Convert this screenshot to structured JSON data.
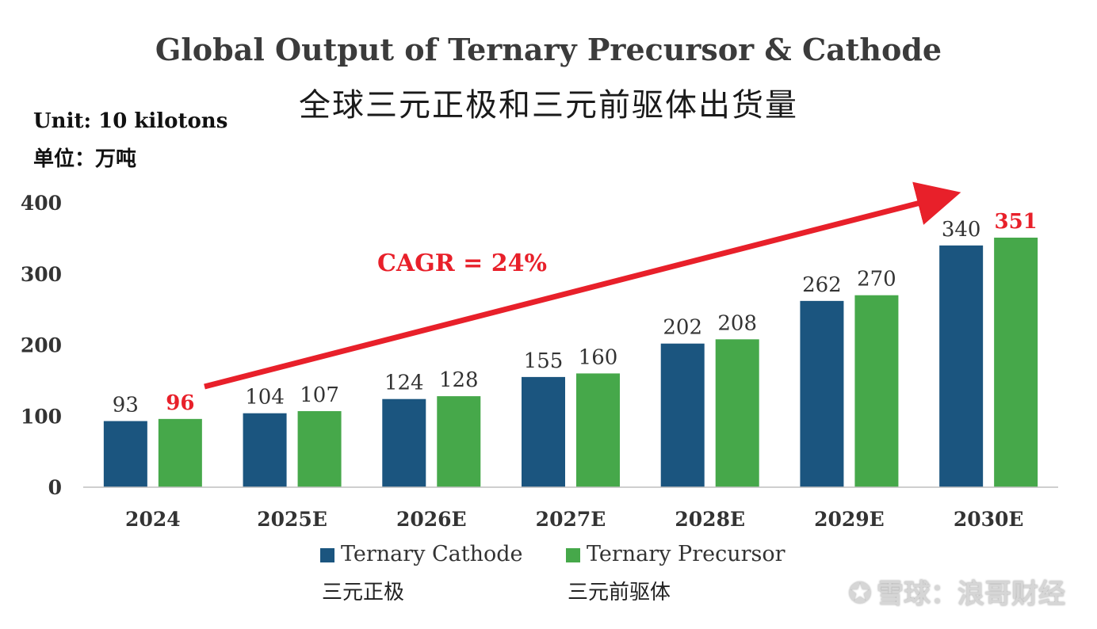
{
  "title_en": "Global Output of Ternary Precursor & Cathode",
  "title_cn": "全球三元正极和三元前驱体出货量",
  "unit_en": "Unit: 10 kilotons",
  "unit_cn": "单位：万吨",
  "annotation": "CAGR = 24%",
  "watermark": "雪球：浪哥财经",
  "colors": {
    "cathode": "#1b557f",
    "precursor": "#46a84a",
    "highlight": "#e8202a",
    "label": "#333333"
  },
  "legend": {
    "cathode_en": "Ternary Cathode",
    "cathode_cn": "三元正极",
    "precursor_en": "Ternary Precursor",
    "precursor_cn": "三元前驱体"
  },
  "chart_data": {
    "type": "bar",
    "categories": [
      "2024",
      "2025E",
      "2026E",
      "2027E",
      "2028E",
      "2029E",
      "2030E"
    ],
    "series": [
      {
        "name": "Ternary Cathode",
        "values": [
          93,
          104,
          124,
          155,
          202,
          262,
          340
        ]
      },
      {
        "name": "Ternary Precursor",
        "values": [
          96,
          107,
          128,
          160,
          208,
          270,
          351
        ]
      }
    ],
    "highlighted_labels": [
      "2024:Ternary Precursor",
      "2030E:Ternary Precursor"
    ],
    "ylim": [
      0,
      400
    ],
    "yticks": [
      0,
      100,
      200,
      300,
      400
    ],
    "grid": false,
    "legend_position": "bottom"
  }
}
